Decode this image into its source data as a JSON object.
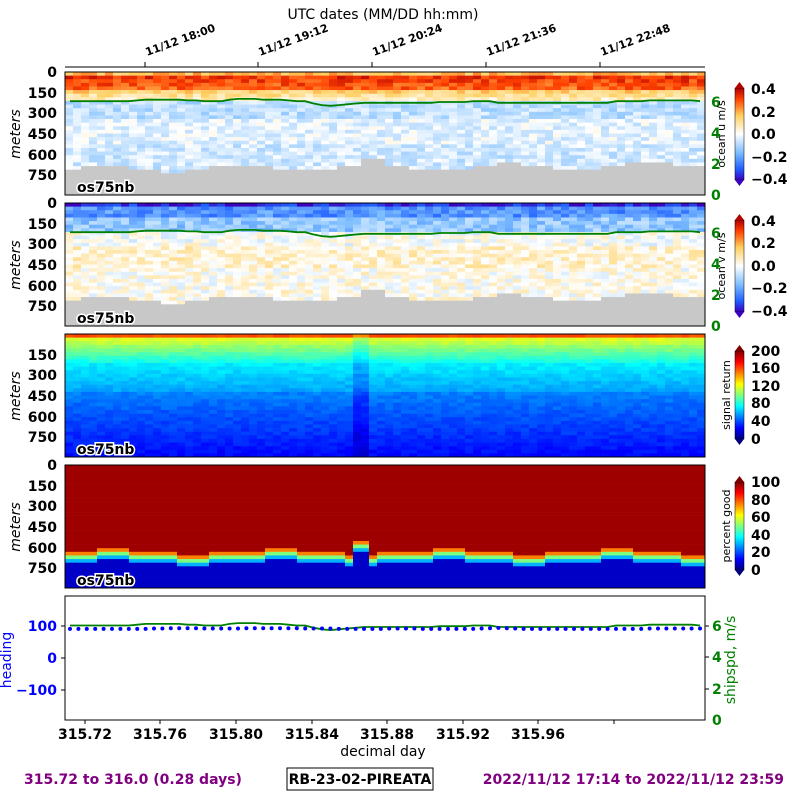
{
  "header": {
    "top_title": "UTC dates (MM/DD hh:mm)",
    "dates": [
      "11/12 18:00",
      "11/12 19:12",
      "11/12 20:24",
      "11/12 21:36",
      "11/12 22:48"
    ]
  },
  "footer": {
    "left": "315.72 to 316.0 (0.28 days)",
    "center": "RB-23-02-PIREATA",
    "right": "2022/11/12 17:14 to 2022/11/12 23:59"
  },
  "chart_data": [
    {
      "type": "heatmap",
      "name": "ocean-u",
      "ylabel": "meters",
      "inst_label": "os75nb",
      "yticks": [
        "0",
        "150",
        "300",
        "450",
        "600",
        "750"
      ],
      "cbar_label": "ocean u m/s",
      "cbar_ticks": [
        "0.4",
        "0.2",
        "0.0",
        "−0.2",
        "−0.4"
      ],
      "cbar_range": [
        -0.4,
        0.4
      ],
      "right_ylabel_ticks": [
        "6",
        "4",
        "2",
        "0"
      ],
      "xlim": [
        315.72,
        316.0
      ],
      "ylim": [
        0,
        900
      ],
      "colormap": "RdYlBu_r",
      "overlay": "ship speed"
    },
    {
      "type": "heatmap",
      "name": "ocean-v",
      "ylabel": "meters",
      "inst_label": "os75nb",
      "yticks": [
        "0",
        "150",
        "300",
        "450",
        "600",
        "750"
      ],
      "cbar_label": "ocean v m/s",
      "cbar_ticks": [
        "0.4",
        "0.2",
        "0.0",
        "−0.2",
        "−0.4"
      ],
      "cbar_range": [
        -0.4,
        0.4
      ],
      "right_ylabel_ticks": [
        "6",
        "4",
        "2",
        "0"
      ],
      "xlim": [
        315.72,
        316.0
      ],
      "ylim": [
        0,
        900
      ],
      "colormap": "RdYlBu_r",
      "overlay": "ship speed"
    },
    {
      "type": "heatmap",
      "name": "signal-return",
      "ylabel": "meters",
      "inst_label": "os75nb",
      "yticks": [
        "150",
        "300",
        "450",
        "600",
        "750"
      ],
      "cbar_label": "signal return",
      "cbar_ticks": [
        "200",
        "160",
        "120",
        "80",
        "40",
        "0"
      ],
      "cbar_range": [
        0,
        200
      ],
      "xlim": [
        315.72,
        316.0
      ],
      "ylim": [
        0,
        900
      ],
      "colormap": "jet"
    },
    {
      "type": "heatmap",
      "name": "percent-good",
      "ylabel": "meters",
      "inst_label": "os75nb",
      "yticks": [
        "0",
        "150",
        "300",
        "450",
        "600",
        "750"
      ],
      "cbar_label": "percent good",
      "cbar_ticks": [
        "100",
        "80",
        "60",
        "40",
        "20",
        "0"
      ],
      "cbar_range": [
        0,
        100
      ],
      "xlim": [
        315.72,
        316.0
      ],
      "ylim": [
        0,
        900
      ],
      "colormap": "jet"
    },
    {
      "type": "line",
      "name": "heading-shipspd",
      "ylabel": "heading",
      "ylabel_right": "shipspd, m/s",
      "xlabel": "decimal day",
      "yticks": [
        "100",
        "0",
        "−100"
      ],
      "right_ticks": [
        "6",
        "4",
        "2",
        "0"
      ],
      "xticks": [
        "315.72",
        "315.76",
        "315.80",
        "315.84",
        "315.88",
        "315.92",
        "315.96"
      ],
      "xlim": [
        315.72,
        316.0
      ],
      "ylim": [
        -200,
        200
      ],
      "ylim_right": [
        0,
        8
      ],
      "series": [
        {
          "color": "#0000ff",
          "values": [
            94,
            94,
            94,
            94,
            94,
            94,
            94,
            94,
            94,
            94,
            95,
            95,
            96,
            96,
            96,
            96,
            95,
            95,
            95,
            95,
            95,
            96,
            96,
            96,
            96,
            96,
            96,
            96,
            95,
            95,
            95,
            95,
            94,
            94,
            94,
            94,
            94,
            94,
            95,
            95,
            95,
            95,
            94,
            94,
            94,
            94,
            94,
            94,
            94,
            95,
            96,
            97,
            96,
            95,
            94,
            94,
            94,
            94,
            94,
            94,
            94,
            94,
            94,
            94,
            94,
            94,
            94,
            94,
            94,
            95,
            95,
            95,
            95,
            95,
            95,
            95
          ]
        },
        {
          "color": "#008000",
          "values": [
            6.1,
            6.1,
            6.1,
            6.1,
            6.1,
            6.1,
            6.1,
            6.1,
            6.15,
            6.2,
            6.2,
            6.2,
            6.2,
            6.2,
            6.15,
            6.15,
            6.1,
            6.1,
            6.1,
            6.2,
            6.25,
            6.25,
            6.25,
            6.2,
            6.2,
            6.2,
            6.15,
            6.1,
            6.1,
            5.95,
            5.85,
            5.8,
            5.85,
            5.9,
            5.95,
            6.0,
            6.0,
            6.0,
            6.0,
            6.0,
            6.0,
            6.0,
            6.0,
            6.0,
            6.05,
            6.05,
            6.05,
            6.05,
            6.1,
            6.1,
            6.1,
            6.0,
            6.0,
            6.0,
            6.0,
            6.0,
            6.0,
            6.0,
            6.0,
            6.0,
            6.0,
            6.0,
            6.0,
            6.0,
            6.0,
            6.1,
            6.1,
            6.1,
            6.1,
            6.15,
            6.15,
            6.15,
            6.15,
            6.15,
            6.15,
            6.1
          ]
        }
      ]
    }
  ]
}
